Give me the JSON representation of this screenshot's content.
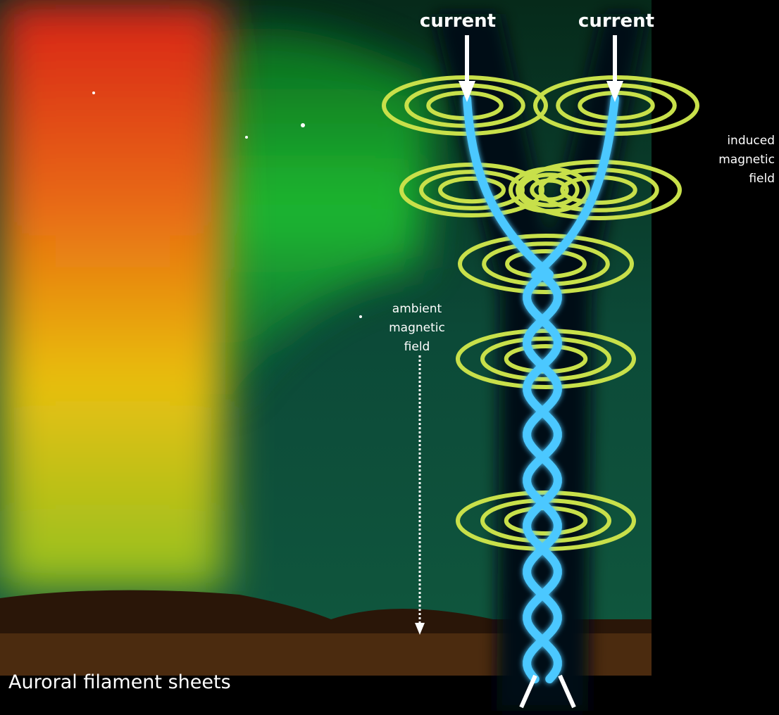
{
  "labels": {
    "current_left": "current",
    "current_right": "current",
    "induced_magnetic_field": [
      "induced",
      "magnetic",
      "field"
    ],
    "ambient_magnetic_field": [
      "ambient",
      "magnetic",
      "field"
    ],
    "caption": "Auroral filament sheets"
  }
}
